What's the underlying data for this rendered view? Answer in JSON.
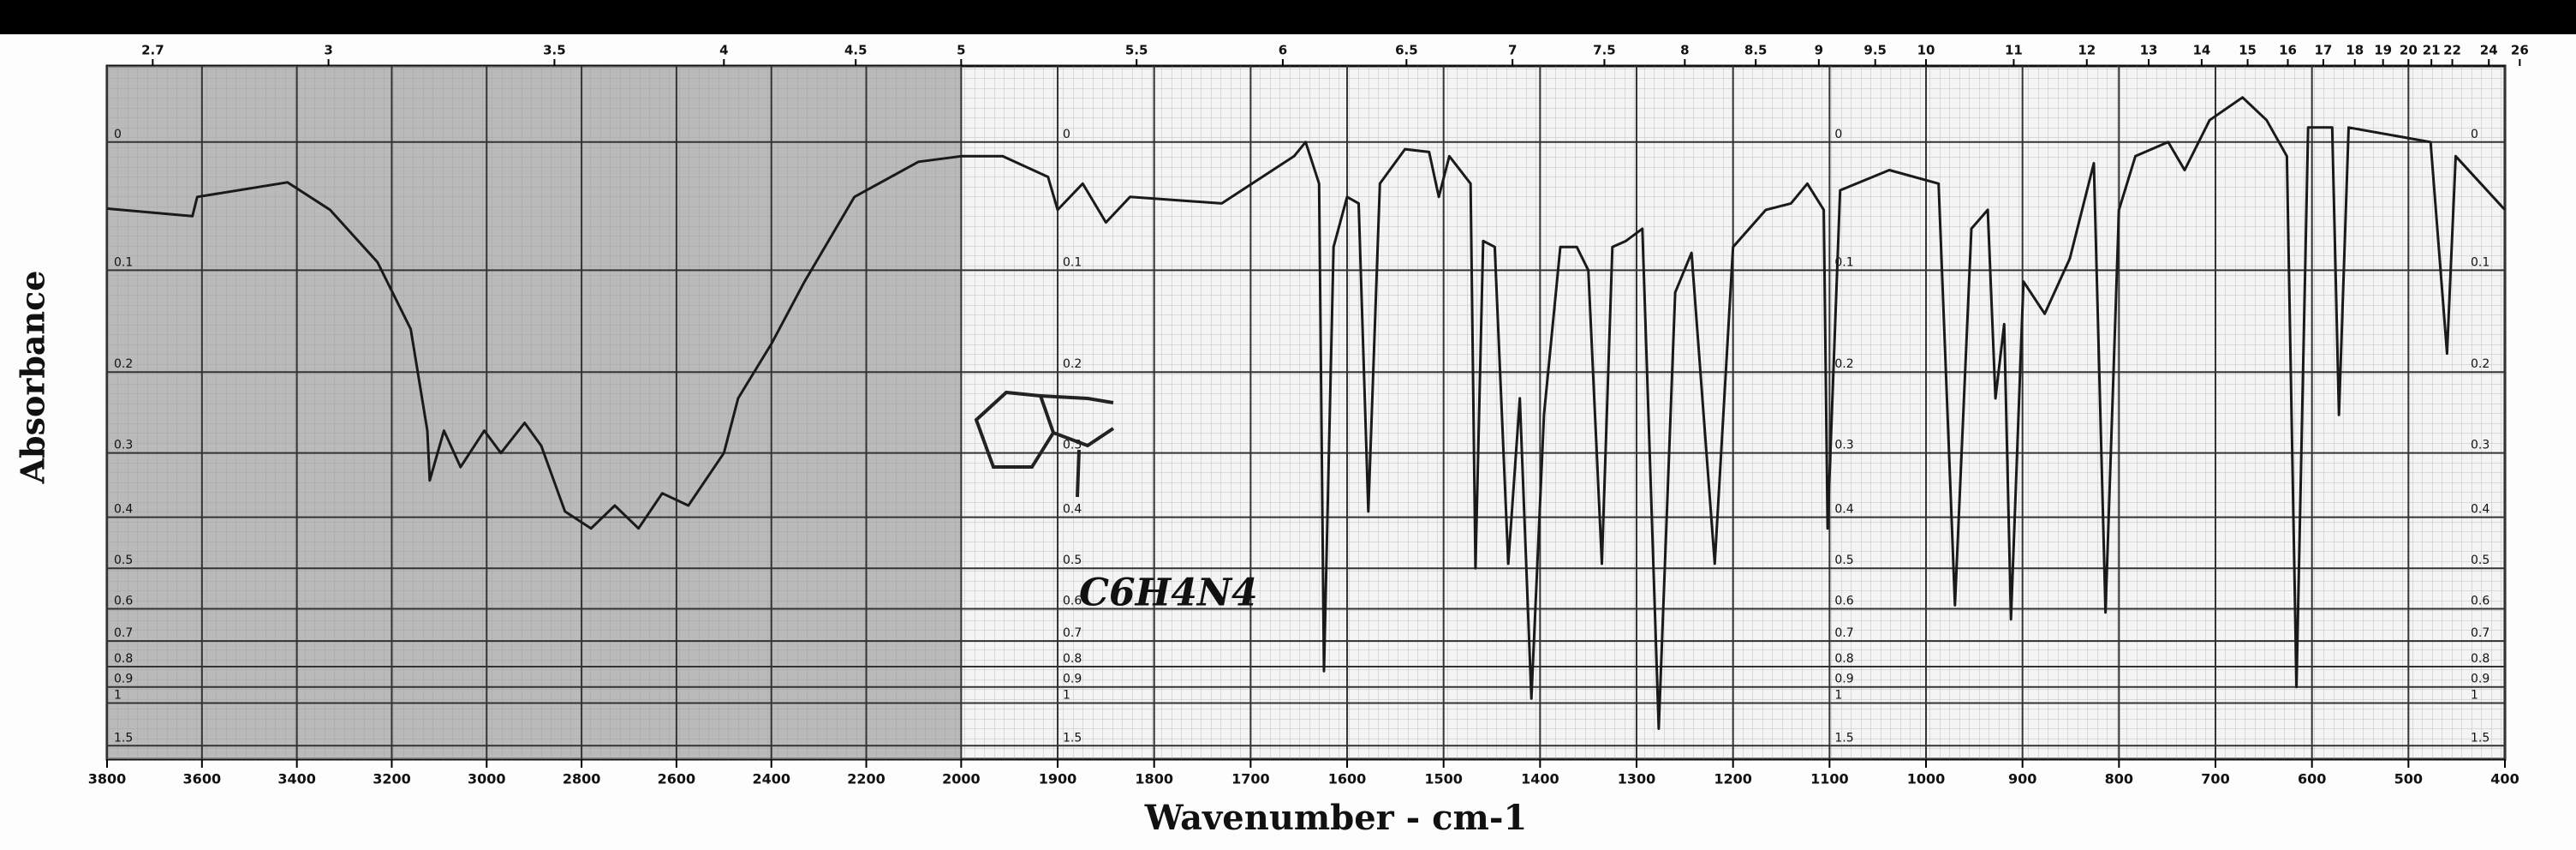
{
  "chart_data": {
    "type": "line",
    "x_label": "Wavenumber - cm-1",
    "y_label": "Absorbance",
    "annotation": "C6H4N4",
    "color": "#1a1a1a",
    "x_break": 2000,
    "y_scale": "absorbance",
    "grid": true,
    "xlim": [
      3800,
      400
    ],
    "xticks": [
      3800,
      3600,
      3400,
      3200,
      3000,
      2800,
      2600,
      2400,
      2200,
      2000,
      1900,
      1800,
      1700,
      1600,
      1500,
      1400,
      1300,
      1200,
      1100,
      1000,
      900,
      800,
      700,
      600,
      500,
      400
    ],
    "x2ticks": [
      2.7,
      3.0,
      3.5,
      4.0,
      4.5,
      5.0,
      5.5,
      6.0,
      6.5,
      7.0,
      7.5,
      8.0,
      8.5,
      9.0,
      9.5,
      10,
      11,
      12,
      13,
      14,
      15,
      16,
      17,
      18,
      19,
      20,
      21,
      22,
      24,
      26
    ],
    "ylim": [
      -0.05,
      2
    ],
    "yticks": [
      0.0,
      0.1,
      0.2,
      0.3,
      0.4,
      0.5,
      0.6,
      0.7,
      0.8,
      0.9,
      1.0,
      1.5
    ],
    "x": [
      3800,
      3620,
      3610,
      3420,
      3330,
      3230,
      3160,
      3125,
      3120,
      3090,
      3055,
      3005,
      2970,
      2920,
      2885,
      2835,
      2780,
      2730,
      2680,
      2630,
      2575,
      2500,
      2470,
      2400,
      2330,
      2225,
      2090,
      2000,
      1957,
      1910,
      1900,
      1874,
      1850,
      1825,
      1730,
      1655,
      1643,
      1629,
      1624,
      1614,
      1600,
      1588,
      1578,
      1566,
      1540,
      1515,
      1505,
      1494,
      1472,
      1467,
      1459,
      1447,
      1433,
      1421,
      1409,
      1396,
      1379,
      1362,
      1350,
      1336,
      1325,
      1311,
      1294,
      1277,
      1260,
      1243,
      1219,
      1200,
      1166,
      1140,
      1123,
      1106,
      1102,
      1089,
      1038,
      987,
      970,
      953,
      936,
      928,
      919,
      912,
      899,
      877,
      851,
      826,
      814,
      800,
      783,
      749,
      732,
      706,
      672,
      647,
      626,
      616,
      604,
      579,
      572,
      562,
      477,
      460,
      451,
      400
    ],
    "values": [
      0.049,
      0.055,
      0.04,
      0.029,
      0.05,
      0.093,
      0.155,
      0.27,
      0.34,
      0.27,
      0.32,
      0.27,
      0.3,
      0.26,
      0.29,
      0.39,
      0.42,
      0.38,
      0.42,
      0.36,
      0.38,
      0.3,
      0.23,
      0.17,
      0.11,
      0.04,
      0.014,
      0.01,
      0.01,
      0.025,
      0.05,
      0.03,
      0.06,
      0.04,
      0.045,
      0.01,
      0.0,
      0.03,
      0.82,
      0.08,
      0.04,
      0.045,
      0.39,
      0.03,
      0.005,
      0.007,
      0.04,
      0.01,
      0.03,
      0.5,
      0.075,
      0.08,
      0.49,
      0.23,
      0.97,
      0.25,
      0.08,
      0.08,
      0.1,
      0.49,
      0.08,
      0.075,
      0.065,
      1.23,
      0.12,
      0.085,
      0.49,
      0.08,
      0.05,
      0.045,
      0.03,
      0.05,
      0.42,
      0.035,
      0.02,
      0.03,
      0.59,
      0.065,
      0.05,
      0.23,
      0.15,
      0.63,
      0.11,
      0.14,
      0.09,
      0.015,
      0.61,
      0.05,
      0.01,
      0.0,
      0.02,
      -0.015,
      -0.03,
      -0.015,
      0.01,
      0.9,
      -0.01,
      -0.01,
      0.25,
      -0.01,
      0.0,
      0.18,
      0.01,
      0.05
    ]
  }
}
